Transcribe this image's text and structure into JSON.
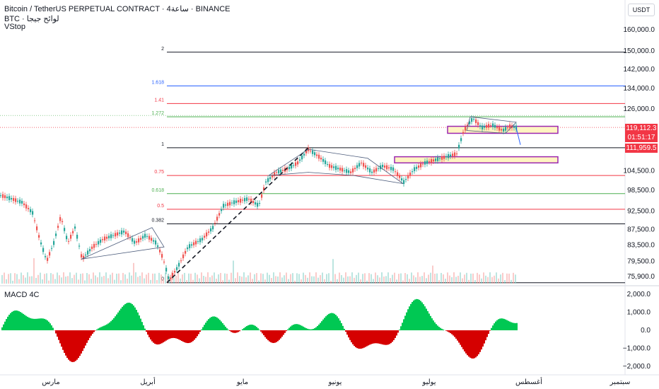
{
  "header": {
    "symbol_line": "Bitcoin / TetherUS PERPETUAL CONTRACT · 4ساعة · BINANCE",
    "sub_line": "BTC · لوائح جيجا",
    "indicator": "VStop",
    "macd_label": "MACD 4C",
    "currency": "USDT"
  },
  "colors": {
    "bull": "#26a69a",
    "bear": "#ef5350",
    "fib_red": "#f23645",
    "fib_green": "#4caf50",
    "fib_blue": "#2962ff",
    "fib_black": "#131722",
    "zone_fill": "#fff4c2",
    "zone_border": "#9c27b0",
    "macd_up": "#00c853",
    "macd_down": "#d50000"
  },
  "price_tags": {
    "current": "119,112.3",
    "countdown": "01:51:17",
    "level": "111,959.5"
  },
  "chart_data": {
    "type": "candlestick",
    "price_axis": {
      "ticks": [
        "160,000.0",
        "150,000.0",
        "142,000.0",
        "134,000.0",
        "126,000.0",
        "111,959.5",
        "104,500.0",
        "98,500.0",
        "92,500.0",
        "87,500.0",
        "83,500.0",
        "79,500.0",
        "75,900.0"
      ],
      "scale": "log"
    },
    "time_axis": {
      "labels": [
        "مارس",
        "أبريل",
        "مايو",
        "يونيو",
        "يوليو",
        "أغسطس",
        "سبتمبر"
      ]
    },
    "fib_levels": [
      {
        "ratio": "2",
        "label": "2",
        "price": 149500,
        "color": "black"
      },
      {
        "ratio": "1.618",
        "label": "1.618",
        "price": 135000,
        "color": "blue"
      },
      {
        "ratio": "1.41",
        "label": "1.41",
        "price": 128000,
        "color": "red"
      },
      {
        "ratio": "1.272",
        "label": "1.272",
        "price": 123000,
        "color": "green"
      },
      {
        "ratio": "1",
        "label": "1",
        "price": 112000,
        "color": "black"
      },
      {
        "ratio": "0.75",
        "label": "0.75",
        "price": 103000,
        "color": "red"
      },
      {
        "ratio": "0.618",
        "label": "0.618",
        "price": 97500,
        "color": "green"
      },
      {
        "ratio": "0.5",
        "label": "0.5",
        "price": 93000,
        "color": "red"
      },
      {
        "ratio": "0.382",
        "label": "0.382",
        "price": 89000,
        "color": "black"
      },
      {
        "ratio": "0",
        "label": "0",
        "price": 74500,
        "color": "black"
      }
    ],
    "path_points": [
      [
        0,
        97000
      ],
      [
        15,
        96000
      ],
      [
        30,
        95000
      ],
      [
        45,
        92000
      ],
      [
        55,
        85000
      ],
      [
        65,
        79500
      ],
      [
        75,
        84000
      ],
      [
        85,
        91000
      ],
      [
        95,
        84000
      ],
      [
        105,
        88000
      ],
      [
        115,
        80000
      ],
      [
        130,
        83000
      ],
      [
        145,
        85000
      ],
      [
        160,
        86000
      ],
      [
        175,
        87000
      ],
      [
        190,
        84000
      ],
      [
        205,
        86000
      ],
      [
        220,
        84000
      ],
      [
        230,
        80000
      ],
      [
        238,
        75000
      ],
      [
        250,
        78000
      ],
      [
        265,
        83000
      ],
      [
        285,
        85000
      ],
      [
        300,
        88000
      ],
      [
        315,
        94000
      ],
      [
        330,
        95000
      ],
      [
        350,
        96000
      ],
      [
        365,
        94000
      ],
      [
        375,
        101000
      ],
      [
        390,
        104000
      ],
      [
        405,
        105000
      ],
      [
        420,
        107000
      ],
      [
        435,
        111500
      ],
      [
        450,
        109000
      ],
      [
        465,
        106000
      ],
      [
        480,
        105000
      ],
      [
        495,
        104000
      ],
      [
        510,
        107000
      ],
      [
        525,
        104000
      ],
      [
        540,
        106000
      ],
      [
        555,
        105000
      ],
      [
        570,
        101000
      ],
      [
        585,
        105000
      ],
      [
        600,
        107000
      ],
      [
        615,
        108000
      ],
      [
        630,
        109000
      ],
      [
        645,
        110000
      ],
      [
        655,
        118000
      ],
      [
        668,
        122500
      ],
      [
        680,
        119000
      ],
      [
        695,
        120000
      ],
      [
        710,
        118000
      ],
      [
        720,
        119500
      ],
      [
        730,
        119000
      ]
    ],
    "zones": [
      {
        "label": "zone-upper",
        "price_top": 119500,
        "price_bottom": 117000,
        "x_start": 633,
        "x_end": 789
      },
      {
        "label": "zone-lower",
        "price_top": 109000,
        "price_bottom": 107000,
        "x_start": 558,
        "x_end": 789
      }
    ],
    "macd_axis": {
      "ticks": [
        "2,000.0",
        "1,000.0",
        "0.0",
        "−1,000.0",
        "−2,000.0"
      ]
    }
  }
}
